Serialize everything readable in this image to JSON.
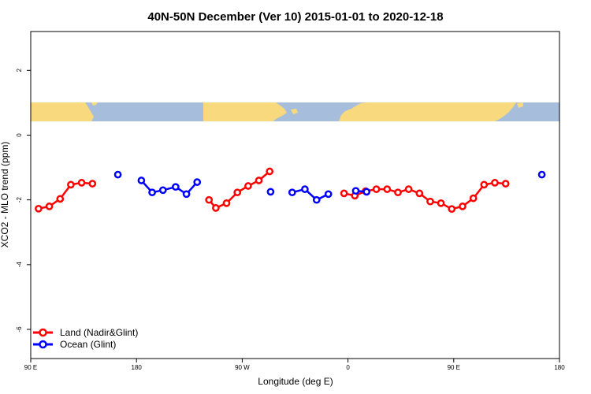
{
  "chart_data": {
    "type": "line",
    "title": "40N-50N December (Ver 10)   2015-01-01 to 2020-12-18",
    "xlabel": "Longitude (deg E)",
    "ylabel": "XCO2 - MLO trend (ppm)",
    "xlim": [
      -90,
      180
    ],
    "ylim": [
      -6.9,
      3.2
    ],
    "x_ticks": [
      {
        "value": -90,
        "label": "90 E"
      },
      {
        "value": -36,
        "label": "180"
      },
      {
        "value": 18,
        "label": "90 W"
      },
      {
        "value": 72,
        "label": "0"
      },
      {
        "value": 126,
        "label": "90 E"
      },
      {
        "value": 180,
        "label": "180"
      }
    ],
    "y_ticks": [
      {
        "value": -6,
        "label": "-6"
      },
      {
        "value": -4,
        "label": "-4"
      },
      {
        "value": -2,
        "label": "-2"
      },
      {
        "value": 0,
        "label": "0"
      },
      {
        "value": 2,
        "label": "2"
      }
    ],
    "legend_position": "bottom-left",
    "colors": {
      "land": "#ff0000",
      "ocean": "#0000ff",
      "map_land": "#f9d97d",
      "map_ocean": "#a6bddb"
    },
    "series": [
      {
        "name": "Land (Nadir&Glint)",
        "color": "#ff0000",
        "segments": [
          [
            [
              -86,
              -2.27
            ],
            [
              -80.5,
              -2.2
            ],
            [
              -75,
              -1.97
            ],
            [
              -69.5,
              -1.53
            ],
            [
              -64,
              -1.47
            ],
            [
              -58.5,
              -1.5
            ]
          ],
          [
            [
              1,
              -2.0
            ],
            [
              4.5,
              -2.25
            ],
            [
              10,
              -2.1
            ],
            [
              15.5,
              -1.77
            ],
            [
              21,
              -1.57
            ],
            [
              26.5,
              -1.4
            ],
            [
              32,
              -1.12
            ]
          ],
          [
            [
              70,
              -1.8
            ],
            [
              75.5,
              -1.87
            ],
            [
              81,
              -1.73
            ],
            [
              86.5,
              -1.67
            ],
            [
              92,
              -1.67
            ],
            [
              97.5,
              -1.77
            ],
            [
              103,
              -1.67
            ],
            [
              108.5,
              -1.8
            ],
            [
              114,
              -2.05
            ],
            [
              119.5,
              -2.1
            ],
            [
              125,
              -2.28
            ],
            [
              130.5,
              -2.2
            ],
            [
              136,
              -1.95
            ],
            [
              141.5,
              -1.53
            ],
            [
              147,
              -1.47
            ],
            [
              152.5,
              -1.5
            ]
          ]
        ]
      },
      {
        "name": "Ocean (Glint)",
        "color": "#0000ff",
        "segments": [
          [
            [
              -45.5,
              -1.22
            ]
          ],
          [
            [
              -33.5,
              -1.4
            ],
            [
              -28,
              -1.77
            ],
            [
              -22.5,
              -1.7
            ],
            [
              -16,
              -1.6
            ],
            [
              -10.5,
              -1.82
            ],
            [
              -5,
              -1.45
            ]
          ],
          [
            [
              32.5,
              -1.75
            ]
          ],
          [
            [
              43.5,
              -1.77
            ],
            [
              50,
              -1.67
            ],
            [
              56,
              -2.0
            ],
            [
              62,
              -1.82
            ]
          ],
          [
            [
              76,
              -1.72
            ],
            [
              81.5,
              -1.75
            ]
          ],
          [
            [
              171,
              -1.22
            ]
          ]
        ]
      }
    ]
  }
}
